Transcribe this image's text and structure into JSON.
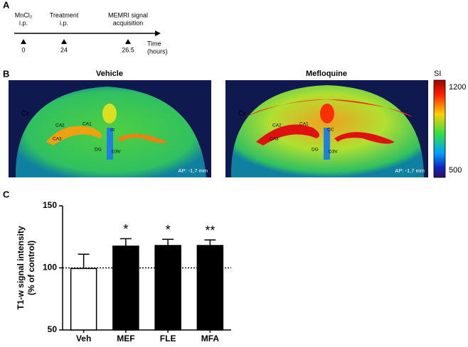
{
  "panel_a": {
    "label": "A",
    "events": [
      {
        "label_lines": [
          "MnCl₂",
          "i.p."
        ],
        "time": "0"
      },
      {
        "label_lines": [
          "Treatment",
          "i.p."
        ],
        "time": "24"
      },
      {
        "label_lines": [
          "MEMRI signal",
          "acquisition"
        ],
        "time": "26.5"
      }
    ],
    "axis_label_lines": [
      "Time",
      "(hours)"
    ]
  },
  "panel_b": {
    "label": "B",
    "images": [
      {
        "title": "Vehicle",
        "regions": [
          "Cx",
          "CA2",
          "CA1",
          "cc",
          "CA3",
          "DG",
          "D3V"
        ],
        "ap": "AP: -1,7 mm"
      },
      {
        "title": "Mefloquine",
        "regions": [
          "Cx",
          "CA2",
          "CA1",
          "CC",
          "CA3",
          "DG",
          "D3V"
        ],
        "ap": "AP: -1,7 mm"
      }
    ],
    "colorbar": {
      "title": "SI",
      "max": "1200",
      "min": "500"
    }
  },
  "panel_c": {
    "label": "C"
  },
  "chart_data": {
    "type": "bar",
    "y_label_lines": [
      "T1-w signal intensity",
      "(% of control)"
    ],
    "categories": [
      "Veh",
      "MEF",
      "FLE",
      "MFA"
    ],
    "values": [
      99.5,
      117.5,
      118,
      118
    ],
    "errors": [
      11.5,
      6,
      5,
      4.5
    ],
    "significance": [
      "",
      "*",
      "*",
      "**"
    ],
    "colors": [
      "#ffffff",
      "#000000",
      "#000000",
      "#000000"
    ],
    "reference_line": 100,
    "ylim": [
      50,
      150
    ],
    "yticks": [
      50,
      100,
      150
    ]
  }
}
